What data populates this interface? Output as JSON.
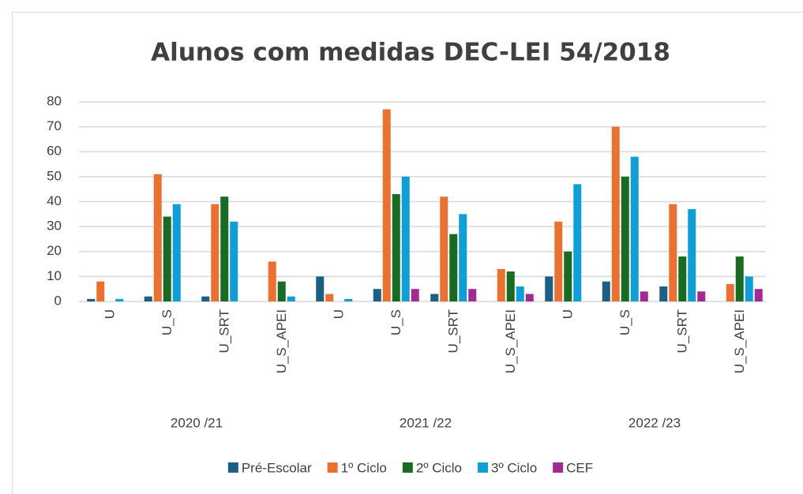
{
  "chart_data": {
    "type": "bar",
    "title": "Alunos com medidas DEC-LEI 54/2018",
    "groups": [
      {
        "label": "2020 /21",
        "categories": [
          "U",
          "U_S",
          "U_SRT",
          "U_S_APEI"
        ]
      },
      {
        "label": "2021 /22",
        "categories": [
          "U",
          "U_S",
          "U_SRT",
          "U_S_APEI"
        ]
      },
      {
        "label": "2022 /23",
        "categories": [
          "U",
          "U_S",
          "U_SRT",
          "U_S_APEI"
        ]
      }
    ],
    "series": [
      {
        "name": "Pré-Escolar",
        "color": "#1d5f82",
        "values": [
          1,
          2,
          2,
          0,
          10,
          5,
          3,
          0,
          10,
          8,
          6,
          0
        ]
      },
      {
        "name": "1º Ciclo",
        "color": "#e97132",
        "values": [
          8,
          51,
          39,
          16,
          3,
          77,
          42,
          13,
          32,
          70,
          39,
          7
        ]
      },
      {
        "name": "2º Ciclo",
        "color": "#196b24",
        "values": [
          0,
          34,
          42,
          8,
          0,
          43,
          27,
          12,
          20,
          50,
          18,
          18
        ]
      },
      {
        "name": "3º Ciclo",
        "color": "#0f9ed5",
        "values": [
          1,
          39,
          32,
          2,
          1,
          50,
          35,
          6,
          47,
          58,
          37,
          10
        ]
      },
      {
        "name": "CEF",
        "color": "#a02b93",
        "values": [
          0,
          0,
          0,
          0,
          0,
          5,
          5,
          3,
          0,
          4,
          4,
          5
        ]
      }
    ],
    "ylim": [
      0,
      80
    ],
    "yticks": [
      0,
      10,
      20,
      30,
      40,
      50,
      60,
      70,
      80
    ],
    "grid": true,
    "legend": "bottom"
  }
}
